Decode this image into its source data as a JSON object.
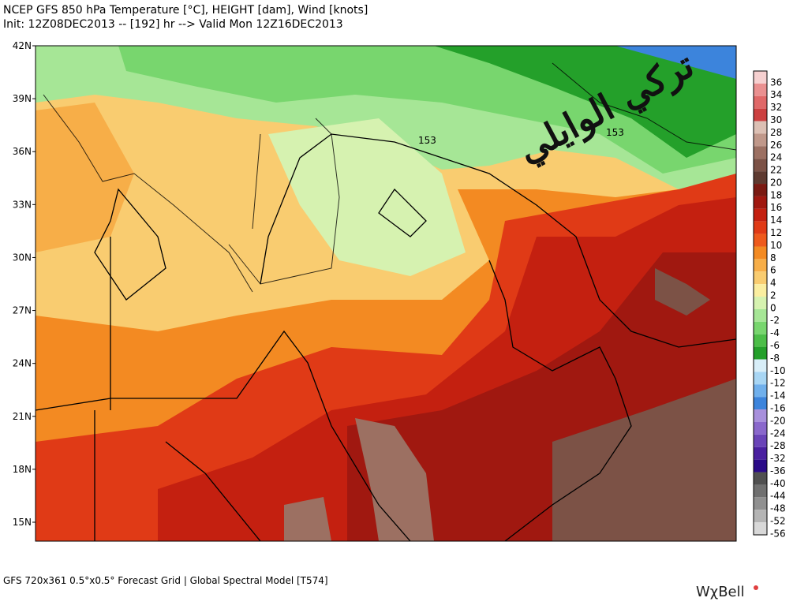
{
  "header": {
    "title": "NCEP GFS 850 hPa Temperature [°C], HEIGHT [dam], Wind [knots]",
    "subtitle": "Init: 12Z08DEC2013 -- [192] hr --> Valid Mon 12Z16DEC2013"
  },
  "latitude_labels": [
    "42N",
    "39N",
    "36N",
    "33N",
    "30N",
    "27N",
    "24N",
    "21N",
    "18N",
    "15N"
  ],
  "contour_labels": [
    "153",
    "153"
  ],
  "watermark": "تركي الوايلي",
  "colorbar": [
    {
      "label": "36",
      "color": "#f6d0d0"
    },
    {
      "label": "34",
      "color": "#ea9090"
    },
    {
      "label": "32",
      "color": "#e06868"
    },
    {
      "label": "30",
      "color": "#cc4040"
    },
    {
      "label": "28",
      "color": "#dcc0b4"
    },
    {
      "label": "26",
      "color": "#c0988a"
    },
    {
      "label": "24",
      "color": "#9c7062"
    },
    {
      "label": "22",
      "color": "#7c5246"
    },
    {
      "label": "20",
      "color": "#5e3a30"
    },
    {
      "label": "18",
      "color": "#7a1a12"
    },
    {
      "label": "16",
      "color": "#a01810"
    },
    {
      "label": "14",
      "color": "#c42010"
    },
    {
      "label": "12",
      "color": "#e03a16"
    },
    {
      "label": "10",
      "color": "#ee5a1c"
    },
    {
      "label": "8",
      "color": "#f38a22"
    },
    {
      "label": "6",
      "color": "#f7ae48"
    },
    {
      "label": "4",
      "color": "#f9cc70"
    },
    {
      "label": "2",
      "color": "#fbeea0"
    },
    {
      "label": "0",
      "color": "#d6f2b0"
    },
    {
      "label": "-2",
      "color": "#a6e696"
    },
    {
      "label": "-4",
      "color": "#78d66e"
    },
    {
      "label": "-6",
      "color": "#4cbe48"
    },
    {
      "label": "-8",
      "color": "#24a02a"
    },
    {
      "label": "-10",
      "color": "#d8eef8"
    },
    {
      "label": "-12",
      "color": "#a8d6f4"
    },
    {
      "label": "-14",
      "color": "#70b0ec"
    },
    {
      "label": "-16",
      "color": "#3c84dc"
    },
    {
      "label": "-20",
      "color": "#a890dc"
    },
    {
      "label": "-24",
      "color": "#8a68cc"
    },
    {
      "label": "-28",
      "color": "#6a44b8"
    },
    {
      "label": "-32",
      "color": "#4a20a0"
    },
    {
      "label": "-36",
      "color": "#2a0a88"
    },
    {
      "label": "-40",
      "color": "#505050"
    },
    {
      "label": "-44",
      "color": "#707070"
    },
    {
      "label": "-48",
      "color": "#909090"
    },
    {
      "label": "-52",
      "color": "#b4b4b4"
    },
    {
      "label": "-56",
      "color": "#d8d8d8"
    }
  ],
  "footer": "GFS 720x361 0.5°x0.5° Forecast Grid | Global Spectral Model [T574]",
  "logo": "WχBell"
}
